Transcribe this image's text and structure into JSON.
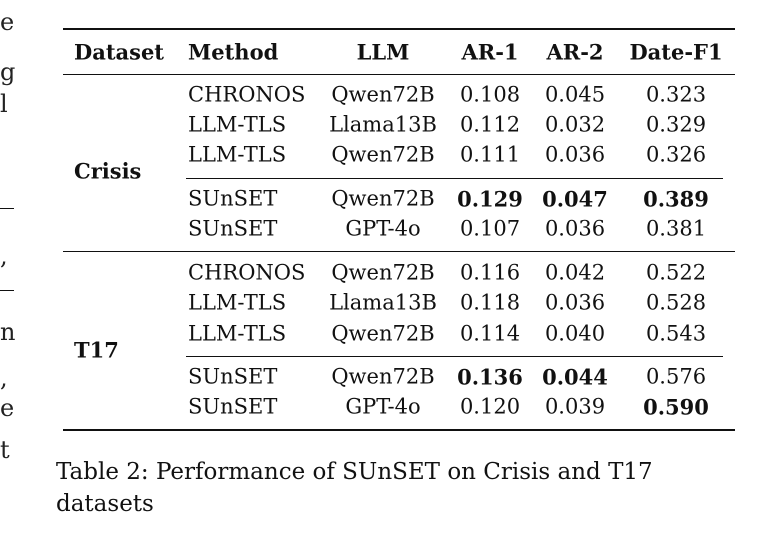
{
  "margin_fragments": [
    "e",
    "g",
    "l",
    "",
    "",
    "",
    ",",
    "",
    "n",
    ",",
    "e",
    "t"
  ],
  "table": {
    "headers": [
      "Dataset",
      "Method",
      "LLM",
      "AR-1",
      "AR-2",
      "Date-F1"
    ],
    "groups": [
      {
        "dataset": "Crisis",
        "rows": [
          {
            "method": "CHRONOS",
            "llm": "Qwen72B",
            "ar1": "0.108",
            "ar2": "0.045",
            "f1": "0.323"
          },
          {
            "method": "LLM-TLS",
            "llm": "Llama13B",
            "ar1": "0.112",
            "ar2": "0.032",
            "f1": "0.329"
          },
          {
            "method": "LLM-TLS",
            "llm": "Qwen72B",
            "ar1": "0.111",
            "ar2": "0.036",
            "f1": "0.326"
          },
          {
            "method": "SUnSET",
            "llm": "Qwen72B",
            "ar1": "0.129",
            "ar2": "0.047",
            "f1": "0.389",
            "bold": [
              "ar1",
              "ar2",
              "f1"
            ]
          },
          {
            "method": "SUnSET",
            "llm": "GPT-4o",
            "ar1": "0.107",
            "ar2": "0.036",
            "f1": "0.381"
          }
        ]
      },
      {
        "dataset": "T17",
        "rows": [
          {
            "method": "CHRONOS",
            "llm": "Qwen72B",
            "ar1": "0.116",
            "ar2": "0.042",
            "f1": "0.522"
          },
          {
            "method": "LLM-TLS",
            "llm": "Llama13B",
            "ar1": "0.118",
            "ar2": "0.036",
            "f1": "0.528"
          },
          {
            "method": "LLM-TLS",
            "llm": "Qwen72B",
            "ar1": "0.114",
            "ar2": "0.040",
            "f1": "0.543"
          },
          {
            "method": "SUnSET",
            "llm": "Qwen72B",
            "ar1": "0.136",
            "ar2": "0.044",
            "f1": "0.576",
            "bold": [
              "ar1",
              "ar2"
            ]
          },
          {
            "method": "SUnSET",
            "llm": "GPT-4o",
            "ar1": "0.120",
            "ar2": "0.039",
            "f1": "0.590",
            "bold": [
              "f1"
            ]
          }
        ]
      }
    ]
  },
  "caption": "Table 2: Performance of SUnSET on Crisis and T17 datasets"
}
